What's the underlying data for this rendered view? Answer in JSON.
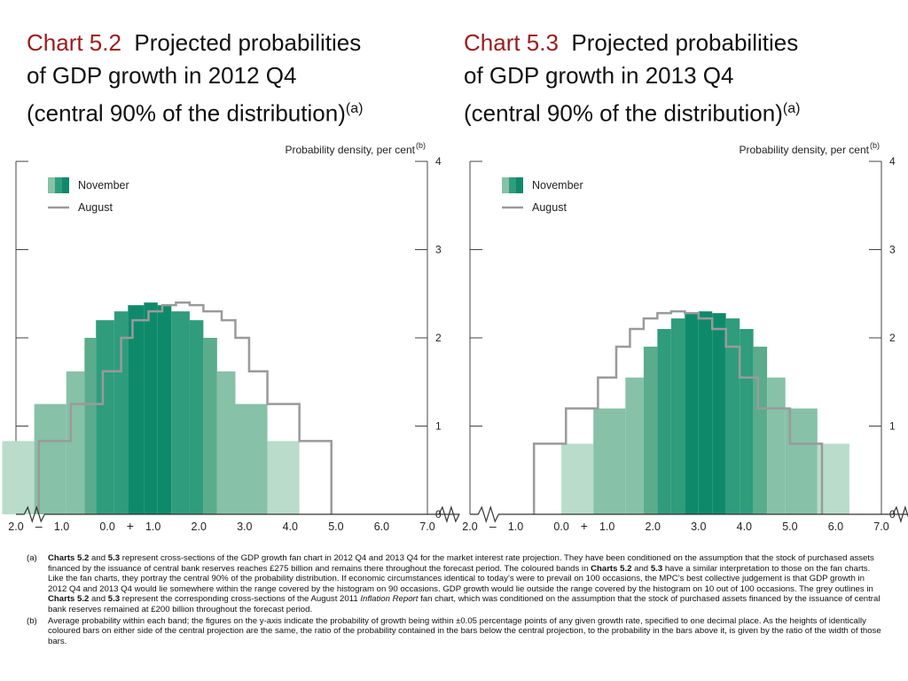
{
  "chart_data": [
    {
      "type": "bar",
      "title_number": "Chart 5.2",
      "title": "Projected probabilities of GDP growth in 2012 Q4 (central 90% of the distribution)",
      "title_lines": [
        "Projected probabilities",
        "of GDP growth in 2012 Q4",
        "(central 90% of the distribution)"
      ],
      "title_note": "(a)",
      "ylabel": "Probability density, per cent",
      "ylabel_note": "(b)",
      "ylim": [
        0,
        4
      ],
      "yticks": [
        "0",
        "1",
        "2",
        "3",
        "4"
      ],
      "xlim": [
        -2.0,
        7.0
      ],
      "xticks": [
        "2.0",
        "1.0",
        "0.0",
        "1.0",
        "2.0",
        "3.0",
        "4.0",
        "5.0",
        "6.0",
        "7.0"
      ],
      "x_signs": [
        "–",
        "+"
      ],
      "legend": [
        "November",
        "August"
      ],
      "legend_position": "top-left",
      "colors": {
        "dark": "#0e8a6b",
        "mid1": "#2f9c7c",
        "mid2": "#5aac8c",
        "light1": "#86c1a8",
        "light2": "#b9dccb",
        "outline": "#9a9a9a"
      },
      "series": [
        {
          "name": "November",
          "bars": [
            {
              "x0": -2.3,
              "x1": -1.6,
              "value": 0.83,
              "shade": "light2"
            },
            {
              "x0": -1.6,
              "x1": -0.9,
              "value": 1.25,
              "shade": "light1"
            },
            {
              "x0": -0.9,
              "x1": -0.5,
              "value": 1.62,
              "shade": "light1"
            },
            {
              "x0": -0.5,
              "x1": -0.25,
              "value": 2.0,
              "shade": "mid2"
            },
            {
              "x0": -0.25,
              "x1": 0.15,
              "value": 2.2,
              "shade": "mid1"
            },
            {
              "x0": 0.15,
              "x1": 0.45,
              "value": 2.3,
              "shade": "mid1"
            },
            {
              "x0": 0.45,
              "x1": 0.8,
              "value": 2.37,
              "shade": "dark"
            },
            {
              "x0": 0.8,
              "x1": 1.1,
              "value": 2.4,
              "shade": "dark"
            },
            {
              "x0": 1.1,
              "x1": 1.4,
              "value": 2.37,
              "shade": "dark"
            },
            {
              "x0": 1.4,
              "x1": 1.8,
              "value": 2.3,
              "shade": "mid1"
            },
            {
              "x0": 1.8,
              "x1": 2.1,
              "value": 2.2,
              "shade": "mid1"
            },
            {
              "x0": 2.1,
              "x1": 2.4,
              "value": 2.0,
              "shade": "mid2"
            },
            {
              "x0": 2.4,
              "x1": 2.8,
              "value": 1.62,
              "shade": "light1"
            },
            {
              "x0": 2.8,
              "x1": 3.5,
              "value": 1.25,
              "shade": "light1"
            },
            {
              "x0": 3.5,
              "x1": 4.2,
              "value": 0.83,
              "shade": "light2"
            }
          ]
        },
        {
          "name": "August",
          "outline": [
            [
              -1.5,
              0
            ],
            [
              -1.5,
              0.83
            ],
            [
              -0.8,
              0.83
            ],
            [
              -0.8,
              1.25
            ],
            [
              -0.1,
              1.25
            ],
            [
              -0.1,
              1.62
            ],
            [
              0.3,
              1.62
            ],
            [
              0.3,
              2.0
            ],
            [
              0.55,
              2.0
            ],
            [
              0.55,
              2.2
            ],
            [
              0.9,
              2.2
            ],
            [
              0.9,
              2.3
            ],
            [
              1.2,
              2.3
            ],
            [
              1.2,
              2.37
            ],
            [
              1.5,
              2.37
            ],
            [
              1.5,
              2.4
            ],
            [
              1.8,
              2.4
            ],
            [
              1.8,
              2.37
            ],
            [
              2.1,
              2.37
            ],
            [
              2.1,
              2.3
            ],
            [
              2.5,
              2.3
            ],
            [
              2.5,
              2.2
            ],
            [
              2.8,
              2.2
            ],
            [
              2.8,
              2.0
            ],
            [
              3.1,
              2.0
            ],
            [
              3.1,
              1.62
            ],
            [
              3.5,
              1.62
            ],
            [
              3.5,
              1.25
            ],
            [
              4.2,
              1.25
            ],
            [
              4.2,
              0.83
            ],
            [
              4.9,
              0.83
            ],
            [
              4.9,
              0
            ]
          ]
        }
      ]
    },
    {
      "type": "bar",
      "title_number": "Chart 5.3",
      "title": "Projected probabilities of GDP growth in 2013 Q4 (central 90% of the distribution)",
      "title_lines": [
        "Projected probabilities",
        "of GDP growth in 2013 Q4",
        "(central 90% of the distribution)"
      ],
      "title_note": "(a)",
      "ylabel": "Probability density, per cent",
      "ylabel_note": "(b)",
      "ylim": [
        0,
        4
      ],
      "yticks": [
        "0",
        "1",
        "2",
        "3",
        "4"
      ],
      "xlim": [
        -2.0,
        7.0
      ],
      "xticks": [
        "2.0",
        "1.0",
        "0.0",
        "1.0",
        "2.0",
        "3.0",
        "4.0",
        "5.0",
        "6.0",
        "7.0"
      ],
      "x_signs": [
        "–",
        "+"
      ],
      "legend": [
        "November",
        "August"
      ],
      "legend_position": "top-left",
      "colors": {
        "dark": "#0e8a6b",
        "mid1": "#2f9c7c",
        "mid2": "#5aac8c",
        "light1": "#86c1a8",
        "light2": "#b9dccb",
        "outline": "#9a9a9a"
      },
      "series": [
        {
          "name": "November",
          "bars": [
            {
              "x0": 0.0,
              "x1": 0.7,
              "value": 0.8,
              "shade": "light2"
            },
            {
              "x0": 0.7,
              "x1": 1.4,
              "value": 1.2,
              "shade": "light1"
            },
            {
              "x0": 1.4,
              "x1": 1.8,
              "value": 1.55,
              "shade": "light1"
            },
            {
              "x0": 1.8,
              "x1": 2.1,
              "value": 1.9,
              "shade": "mid2"
            },
            {
              "x0": 2.1,
              "x1": 2.4,
              "value": 2.1,
              "shade": "mid1"
            },
            {
              "x0": 2.4,
              "x1": 2.7,
              "value": 2.22,
              "shade": "mid1"
            },
            {
              "x0": 2.7,
              "x1": 3.0,
              "value": 2.28,
              "shade": "dark"
            },
            {
              "x0": 3.0,
              "x1": 3.3,
              "value": 2.3,
              "shade": "dark"
            },
            {
              "x0": 3.3,
              "x1": 3.6,
              "value": 2.28,
              "shade": "dark"
            },
            {
              "x0": 3.6,
              "x1": 3.9,
              "value": 2.22,
              "shade": "mid1"
            },
            {
              "x0": 3.9,
              "x1": 4.2,
              "value": 2.1,
              "shade": "mid1"
            },
            {
              "x0": 4.2,
              "x1": 4.5,
              "value": 1.9,
              "shade": "mid2"
            },
            {
              "x0": 4.5,
              "x1": 4.9,
              "value": 1.55,
              "shade": "light1"
            },
            {
              "x0": 4.9,
              "x1": 5.6,
              "value": 1.2,
              "shade": "light1"
            },
            {
              "x0": 5.6,
              "x1": 6.3,
              "value": 0.8,
              "shade": "light2"
            }
          ]
        },
        {
          "name": "August",
          "outline": [
            [
              -0.6,
              0
            ],
            [
              -0.6,
              0.8
            ],
            [
              0.1,
              0.8
            ],
            [
              0.1,
              1.2
            ],
            [
              0.8,
              1.2
            ],
            [
              0.8,
              1.55
            ],
            [
              1.2,
              1.55
            ],
            [
              1.2,
              1.9
            ],
            [
              1.5,
              1.9
            ],
            [
              1.5,
              2.1
            ],
            [
              1.8,
              2.1
            ],
            [
              1.8,
              2.22
            ],
            [
              2.1,
              2.22
            ],
            [
              2.1,
              2.28
            ],
            [
              2.4,
              2.28
            ],
            [
              2.4,
              2.3
            ],
            [
              2.7,
              2.3
            ],
            [
              2.7,
              2.28
            ],
            [
              3.0,
              2.28
            ],
            [
              3.0,
              2.22
            ],
            [
              3.3,
              2.22
            ],
            [
              3.3,
              2.1
            ],
            [
              3.6,
              2.1
            ],
            [
              3.6,
              1.9
            ],
            [
              3.9,
              1.9
            ],
            [
              3.9,
              1.55
            ],
            [
              4.3,
              1.55
            ],
            [
              4.3,
              1.2
            ],
            [
              5.0,
              1.2
            ],
            [
              5.0,
              0.8
            ],
            [
              5.7,
              0.8
            ],
            [
              5.7,
              0
            ]
          ]
        }
      ]
    }
  ],
  "notes": [
    {
      "label": "(a)",
      "segments": [
        {
          "text": "Charts 5.2",
          "style": "bold"
        },
        {
          "text": " and ",
          "style": "normal"
        },
        {
          "text": "5.3",
          "style": "bold"
        },
        {
          "text": " represent cross-sections of the GDP growth fan chart in 2012 Q4 and 2013 Q4 for the market interest rate projection.  They have been conditioned on the assumption that the stock of purchased assets financed by the issuance of central bank reserves reaches £275 billion and remains there throughout the forecast period.  The coloured bands in ",
          "style": "normal"
        },
        {
          "text": "Charts 5.2",
          "style": "bold"
        },
        {
          "text": " and ",
          "style": "normal"
        },
        {
          "text": "5.3",
          "style": "bold"
        },
        {
          "text": " have a similar interpretation to those on the fan charts.  Like the fan charts, they portray the central 90% of the probability distribution.  If economic circumstances identical to today’s were to prevail on 100 occasions, the MPC’s best collective judgement is that GDP growth in 2012 Q4 and 2013 Q4 would lie somewhere within the range covered by the histogram on 90 occasions.  GDP growth would lie outside the range covered by the histogram on 10 out of 100 occasions.  The grey outlines in ",
          "style": "normal"
        },
        {
          "text": "Charts 5.2",
          "style": "bold"
        },
        {
          "text": " and ",
          "style": "normal"
        },
        {
          "text": "5.3",
          "style": "bold"
        },
        {
          "text": " represent the corresponding cross-sections of the August 2011 ",
          "style": "normal"
        },
        {
          "text": "Inflation Report",
          "style": "italic"
        },
        {
          "text": " fan chart, which was conditioned on the assumption that the stock of purchased assets financed by the issuance of central bank reserves remained at £200 billion throughout the forecast period.",
          "style": "normal"
        }
      ]
    },
    {
      "label": "(b)",
      "segments": [
        {
          "text": "Average probability within each band;  the figures on the y-axis indicate the probability of growth being within ±0.05 percentage points of any given growth rate, specified to one decimal place.  As the heights of identically coloured bars on either side of the central projection are the same, the ratio of the probability contained in the bars below the central projection, to the probability in the bars above it, is given by the ratio of the width of those bars.",
          "style": "normal"
        }
      ]
    }
  ]
}
